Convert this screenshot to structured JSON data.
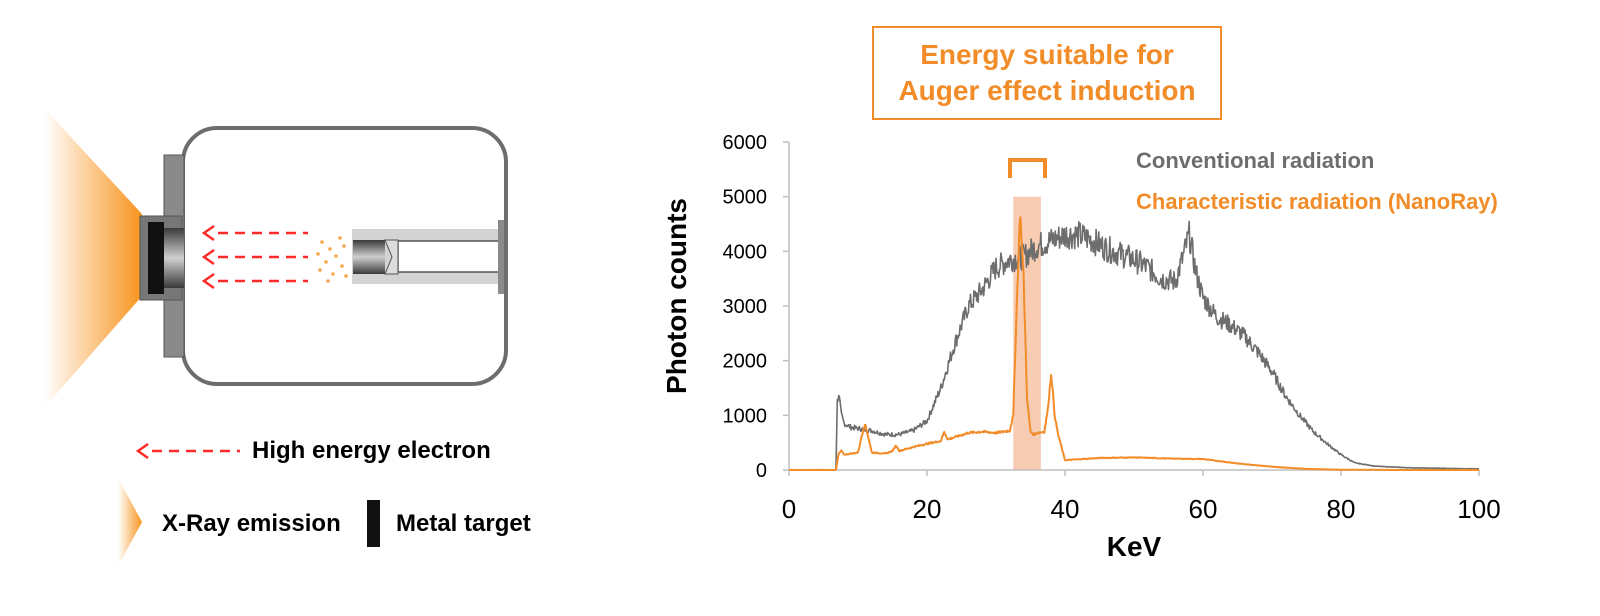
{
  "diagram": {
    "legend": {
      "electron": "High energy electron",
      "xray": "X-Ray emission",
      "metal": "Metal target"
    },
    "colors": {
      "electron_arrow": "#ff2a2a",
      "xray": "#f7941d",
      "housing": "#666666",
      "particles": "#f5a94a"
    }
  },
  "callout": {
    "line1": "Energy suitable for",
    "line2": "Auger effect induction",
    "color": "#f28c28"
  },
  "chart_data": {
    "type": "line",
    "xlabel": "KeV",
    "ylabel": "Photon counts",
    "xlim": [
      0,
      100
    ],
    "ylim": [
      0,
      6000
    ],
    "xticks": [
      0,
      20,
      40,
      60,
      80,
      100
    ],
    "yticks": [
      0,
      1000,
      2000,
      3000,
      4000,
      5000,
      6000
    ],
    "grid": false,
    "legend_placement": "top-right",
    "highlight_band": {
      "x": [
        32.5,
        36.5
      ],
      "color": "#f6c3a6"
    },
    "series": [
      {
        "name": "Conventional radiation",
        "color": "#6d6d6d",
        "x": [
          0,
          6.8,
          7.0,
          7.2,
          7.6,
          8,
          9,
          10,
          12,
          14,
          16,
          18,
          20,
          22,
          24,
          26,
          28,
          30,
          32,
          34,
          36,
          38,
          40,
          42,
          44,
          46,
          48,
          50,
          52,
          54,
          56,
          57,
          58,
          59,
          60,
          62,
          64,
          66,
          68,
          70,
          72,
          74,
          76,
          78,
          80,
          82,
          85,
          90,
          95,
          100
        ],
        "values": [
          0,
          0,
          1250,
          1400,
          1000,
          850,
          780,
          760,
          720,
          650,
          650,
          720,
          900,
          1500,
          2300,
          3000,
          3300,
          3700,
          3850,
          3900,
          4100,
          4200,
          4300,
          4300,
          4200,
          4050,
          3950,
          3850,
          3700,
          3500,
          3450,
          3850,
          4300,
          3600,
          3150,
          2800,
          2650,
          2450,
          2150,
          1800,
          1350,
          1000,
          700,
          480,
          280,
          130,
          70,
          40,
          30,
          20
        ]
      },
      {
        "name": "Characteristic radiation (NanoRay)",
        "color": "#f28c28",
        "x": [
          0,
          6.8,
          7.2,
          7.6,
          8,
          9,
          10,
          10.5,
          11,
          11.5,
          12,
          14,
          15,
          15.5,
          16,
          18,
          20,
          22,
          22.5,
          23,
          24,
          26,
          28,
          30,
          32,
          32.5,
          33,
          33.5,
          34,
          34.5,
          35,
          35.5,
          36,
          37,
          37.5,
          38,
          38.5,
          39,
          40,
          45,
          50,
          55,
          60,
          65,
          70,
          75,
          80,
          90,
          100
        ],
        "values": [
          0,
          0,
          300,
          350,
          280,
          300,
          320,
          600,
          850,
          600,
          320,
          300,
          350,
          450,
          350,
          420,
          480,
          530,
          700,
          560,
          600,
          680,
          700,
          680,
          720,
          1000,
          3000,
          4750,
          3500,
          1300,
          700,
          650,
          680,
          700,
          1100,
          1780,
          1000,
          650,
          180,
          220,
          230,
          210,
          200,
          120,
          60,
          20,
          5,
          0,
          0
        ]
      }
    ]
  }
}
